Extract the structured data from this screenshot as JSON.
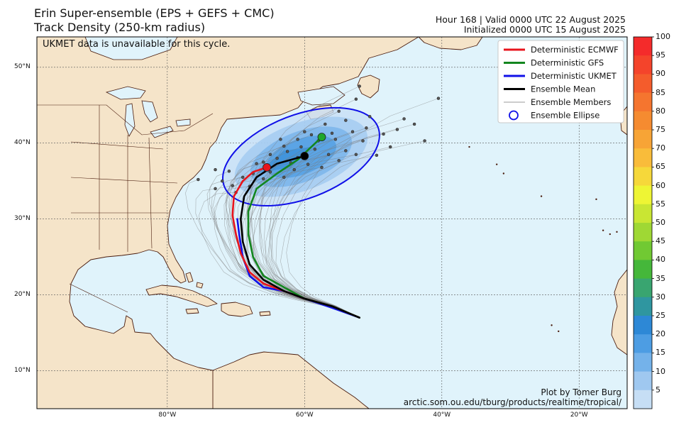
{
  "header": {
    "title_line1": "Erin Super-ensemble (EPS + GEFS + CMC)",
    "title_line2": "Track Density (250-km radius)",
    "valid_line": "Hour 168 | Valid 0000 UTC 22 August 2025",
    "init_line": "Initialized 0000 UTC 15 August 2025"
  },
  "notice": "UKMET data is unavailable for this cycle.",
  "credit": {
    "line1": "Plot by Tomer Burg",
    "line2": "arctic.som.ou.edu/tburg/products/realtime/tropical/"
  },
  "axes": {
    "lat_labels": [
      "50°N",
      "40°N",
      "30°N",
      "20°N",
      "10°N"
    ],
    "lat_values": [
      50,
      40,
      30,
      20,
      10
    ],
    "lon_labels": [
      "80°W",
      "60°W",
      "40°W",
      "20°W"
    ],
    "lon_values": [
      -80,
      -60,
      -40,
      -20
    ]
  },
  "legend": {
    "items": [
      {
        "label": "Deterministic ECMWF",
        "color": "#e8141c",
        "style": "thick"
      },
      {
        "label": "Deterministic GFS",
        "color": "#13861f",
        "style": "thick"
      },
      {
        "label": "Deterministic UKMET",
        "color": "#1010e8",
        "style": "thick"
      },
      {
        "label": "Ensemble Mean",
        "color": "#000000",
        "style": "thick"
      },
      {
        "label": "Ensemble Members",
        "color": "#9a9a9a",
        "style": "thin"
      },
      {
        "label": "Ensemble Ellipse",
        "color": "#1010e8",
        "style": "circle"
      }
    ]
  },
  "colorbar": {
    "labels": [
      "100",
      "95",
      "90",
      "85",
      "80",
      "75",
      "70",
      "65",
      "60",
      "55",
      "50",
      "45",
      "40",
      "35",
      "30",
      "25",
      "20",
      "15",
      "10",
      "5"
    ],
    "colors": [
      "#f42b2b",
      "#f4442b",
      "#f45c2c",
      "#f5752f",
      "#f58b30",
      "#f7a436",
      "#f9bc3a",
      "#f6d83a",
      "#eef534",
      "#c9e633",
      "#9fd834",
      "#71c933",
      "#45b73a",
      "#39a570",
      "#2f96a0",
      "#2d88d6",
      "#4d9de3",
      "#74b2ea",
      "#9fc8f0",
      "#c6def5"
    ],
    "min": 5,
    "max": 100
  },
  "map_data": {
    "extent": {
      "lon_min": -99,
      "lon_max": -13,
      "lat_min": 5,
      "lat_max": 54
    },
    "ecmwf_track": [
      [
        -52,
        17
      ],
      [
        -56,
        18.5
      ],
      [
        -60,
        19.5
      ],
      [
        -63,
        20.5
      ],
      [
        -66,
        21.5
      ],
      [
        -68,
        23
      ],
      [
        -69.3,
        25.5
      ],
      [
        -70,
        28
      ],
      [
        -70.5,
        30.5
      ],
      [
        -70.3,
        33
      ],
      [
        -69,
        35
      ],
      [
        -67.5,
        36.2
      ],
      [
        -65.5,
        36.8
      ]
    ],
    "gfs_track": [
      [
        -52,
        17
      ],
      [
        -56,
        18.5
      ],
      [
        -60,
        19.5
      ],
      [
        -63,
        21
      ],
      [
        -66,
        22.5
      ],
      [
        -67.5,
        25
      ],
      [
        -68.2,
        28
      ],
      [
        -68.2,
        31
      ],
      [
        -67,
        34
      ],
      [
        -64,
        36
      ],
      [
        -61,
        37.8
      ],
      [
        -57.5,
        40.8
      ]
    ],
    "ukmet_track": [
      [
        -52,
        17
      ],
      [
        -56,
        18.3
      ],
      [
        -60,
        19.5
      ],
      [
        -63,
        20.5
      ],
      [
        -66,
        21
      ],
      [
        -68,
        22.5
      ],
      [
        -69,
        25
      ],
      [
        -69.5,
        27.8
      ],
      [
        -69.8,
        30
      ]
    ],
    "mean_track": [
      [
        -52,
        17
      ],
      [
        -56,
        18.5
      ],
      [
        -60,
        19.5
      ],
      [
        -63,
        20.5
      ],
      [
        -66,
        22
      ],
      [
        -68,
        24
      ],
      [
        -69,
        27
      ],
      [
        -69.3,
        30
      ],
      [
        -68.8,
        33
      ],
      [
        -67,
        35.5
      ],
      [
        -64,
        37.3
      ],
      [
        -60,
        38.3
      ]
    ],
    "endpoints": [
      {
        "series": "Deterministic ECMWF",
        "lon": -65.5,
        "lat": 36.8,
        "color": "#e8141c"
      },
      {
        "series": "Deterministic GFS",
        "lon": -57.5,
        "lat": 40.8,
        "color": "#1ea72c"
      },
      {
        "series": "Ensemble Mean",
        "lon": -60,
        "lat": 38.3,
        "color": "#000000"
      }
    ],
    "ellipse": {
      "center_lon": -60.5,
      "center_lat": 38.2,
      "semi_major_deg": 12,
      "semi_minor_deg": 4.8,
      "rotation_deg": 21
    },
    "member_endpoints": [
      [
        -75.5,
        35.2
      ],
      [
        -73,
        34
      ],
      [
        -72,
        35
      ],
      [
        -70.5,
        34.4
      ],
      [
        -69,
        35.5
      ],
      [
        -68,
        34.3
      ],
      [
        -67,
        37.3
      ],
      [
        -66,
        35.3
      ],
      [
        -65,
        36.2
      ],
      [
        -64,
        38
      ],
      [
        -63,
        35.5
      ],
      [
        -62,
        37.4
      ],
      [
        -61.5,
        36.5
      ],
      [
        -60.5,
        39.5
      ],
      [
        -59.5,
        37.2
      ],
      [
        -58.5,
        39.2
      ],
      [
        -57.5,
        36.8
      ],
      [
        -56.5,
        38.5
      ],
      [
        -55.5,
        40.5
      ],
      [
        -55,
        37.7
      ],
      [
        -54,
        39
      ],
      [
        -53,
        41.5
      ],
      [
        -52.5,
        38.5
      ],
      [
        -51.5,
        40.3
      ],
      [
        -51,
        42
      ],
      [
        -49.5,
        38.4
      ],
      [
        -48.5,
        41.2
      ],
      [
        -47.5,
        39.5
      ],
      [
        -46.5,
        41.8
      ],
      [
        -45.5,
        43.2
      ],
      [
        -44,
        42.5
      ],
      [
        -42.5,
        40.3
      ],
      [
        -40.5,
        45.9
      ],
      [
        -52,
        47.5
      ],
      [
        -52.5,
        45.8
      ],
      [
        -55,
        44.2
      ],
      [
        -57,
        42.5
      ],
      [
        -59,
        41.1
      ],
      [
        -61,
        40.5
      ],
      [
        -63,
        39.6
      ],
      [
        -65,
        38.5
      ],
      [
        -66,
        37.5
      ],
      [
        -67.5,
        36
      ],
      [
        -70,
        33.5
      ],
      [
        -71,
        36.3
      ],
      [
        -73,
        36.5
      ],
      [
        -61,
        38.1
      ],
      [
        -62.5,
        38.9
      ],
      [
        -58,
        40.3
      ],
      [
        -56,
        41.3
      ],
      [
        -54,
        43
      ],
      [
        -50.5,
        43.5
      ],
      [
        -63.5,
        40.5
      ],
      [
        -60,
        41.5
      ]
    ],
    "cities_dots": [
      [
        -36,
        39.5
      ],
      [
        -32,
        37.2
      ],
      [
        -31,
        36
      ],
      [
        -25.5,
        33
      ],
      [
        -17.5,
        32.6
      ],
      [
        -16.5,
        28.5
      ],
      [
        -15.5,
        28
      ],
      [
        -14.5,
        28.3
      ],
      [
        -24,
        16
      ],
      [
        -23,
        15.2
      ]
    ]
  }
}
